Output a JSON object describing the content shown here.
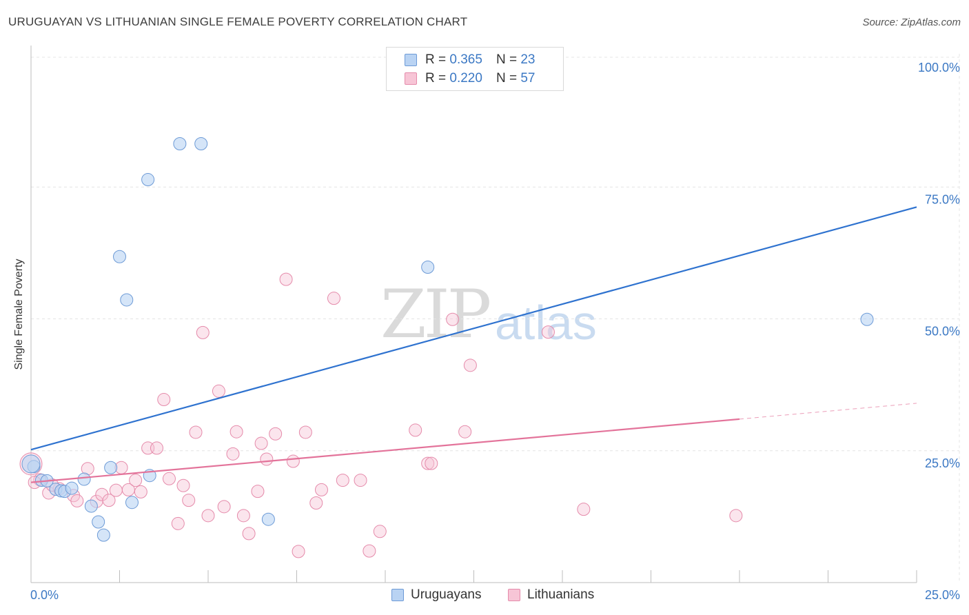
{
  "header": {
    "title": "URUGUAYAN VS LITHUANIAN SINGLE FEMALE POVERTY CORRELATION CHART",
    "source": "Source: ZipAtlas.com"
  },
  "watermark": {
    "zip": "ZIP",
    "atlas": "atlas"
  },
  "legend": {
    "rows": [
      {
        "r_label": "R =",
        "r_value": "0.365",
        "n_label": "N =",
        "n_value": "23"
      },
      {
        "r_label": "R =",
        "r_value": "0.220",
        "n_label": "N =",
        "n_value": "57"
      }
    ]
  },
  "bottom_legend": {
    "series1": "Uruguayans",
    "series2": "Lithuanians"
  },
  "colors": {
    "blue_fill": "#b9d3f3",
    "blue_stroke": "#6c9ad6",
    "blue_line": "#2e72cf",
    "pink_fill": "#f7c5d6",
    "pink_stroke": "#e58aaa",
    "pink_line": "#e3739a",
    "grid": "#e4e4e4",
    "tick_label": "#3b78c4"
  },
  "chart_data": {
    "type": "scatter",
    "title": "URUGUAYAN VS LITHUANIAN SINGLE FEMALE POVERTY CORRELATION CHART",
    "xlabel": "",
    "ylabel": "Single Female Poverty",
    "xlim": [
      0,
      25
    ],
    "ylim": [
      0,
      100
    ],
    "x_ticks_labels": [
      "0.0%",
      "25.0%"
    ],
    "y_ticks": [
      25,
      50,
      75,
      100
    ],
    "y_ticks_labels": [
      "25.0%",
      "50.0%",
      "75.0%",
      "100.0%"
    ],
    "grid": true,
    "legend_position": "top-center",
    "series": [
      {
        "name": "Uruguayans",
        "color": "blue",
        "trend": {
          "x": [
            0,
            25
          ],
          "y": [
            25.2,
            71.2
          ]
        },
        "points": [
          [
            0.08,
            22.0
          ],
          [
            0.3,
            19.4
          ],
          [
            0.45,
            19.3
          ],
          [
            0.7,
            17.7
          ],
          [
            0.85,
            17.4
          ],
          [
            0.95,
            17.3
          ],
          [
            1.15,
            17.9
          ],
          [
            1.5,
            19.6
          ],
          [
            1.7,
            14.5
          ],
          [
            1.9,
            11.5
          ],
          [
            2.05,
            9.0
          ],
          [
            2.25,
            21.8
          ],
          [
            2.5,
            61.8
          ],
          [
            2.7,
            53.6
          ],
          [
            2.85,
            15.2
          ],
          [
            3.3,
            76.4
          ],
          [
            3.35,
            20.3
          ],
          [
            4.2,
            83.2
          ],
          [
            4.8,
            83.2
          ],
          [
            6.7,
            12.0
          ],
          [
            11.2,
            59.8
          ],
          [
            23.6,
            49.9
          ],
          [
            0.0,
            22.5
          ]
        ]
      },
      {
        "name": "Lithuanians",
        "color": "pink",
        "trend": {
          "x": [
            0,
            20
          ],
          "y": [
            19.0,
            31.0
          ]
        },
        "trend_dashed": {
          "x": [
            20,
            25
          ],
          "y": [
            31.0,
            34.0
          ]
        },
        "points": [
          [
            0.0,
            22.5
          ],
          [
            0.25,
            19.5
          ],
          [
            0.5,
            17.0
          ],
          [
            0.8,
            17.8
          ],
          [
            1.2,
            16.5
          ],
          [
            1.3,
            15.5
          ],
          [
            1.6,
            21.6
          ],
          [
            1.85,
            15.4
          ],
          [
            2.0,
            16.7
          ],
          [
            2.2,
            15.6
          ],
          [
            2.4,
            17.5
          ],
          [
            2.55,
            21.8
          ],
          [
            2.75,
            17.6
          ],
          [
            2.95,
            19.4
          ],
          [
            3.1,
            17.2
          ],
          [
            3.3,
            25.5
          ],
          [
            3.55,
            25.5
          ],
          [
            3.75,
            34.7
          ],
          [
            3.9,
            19.7
          ],
          [
            4.15,
            11.2
          ],
          [
            4.3,
            18.4
          ],
          [
            4.45,
            15.6
          ],
          [
            4.65,
            28.5
          ],
          [
            4.85,
            47.4
          ],
          [
            5.0,
            12.7
          ],
          [
            5.3,
            36.3
          ],
          [
            5.45,
            14.4
          ],
          [
            5.7,
            24.4
          ],
          [
            5.8,
            28.6
          ],
          [
            6.0,
            12.7
          ],
          [
            6.15,
            9.3
          ],
          [
            6.4,
            17.3
          ],
          [
            6.5,
            26.4
          ],
          [
            6.65,
            23.4
          ],
          [
            6.9,
            28.2
          ],
          [
            7.2,
            57.5
          ],
          [
            7.4,
            23.0
          ],
          [
            7.55,
            5.9
          ],
          [
            7.75,
            28.5
          ],
          [
            8.05,
            15.1
          ],
          [
            8.2,
            17.6
          ],
          [
            8.55,
            53.9
          ],
          [
            8.8,
            19.4
          ],
          [
            9.3,
            19.4
          ],
          [
            9.55,
            6.0
          ],
          [
            9.85,
            9.7
          ],
          [
            10.85,
            28.9
          ],
          [
            11.2,
            22.6
          ],
          [
            11.3,
            22.6
          ],
          [
            11.9,
            49.9
          ],
          [
            12.25,
            28.6
          ],
          [
            12.4,
            41.2
          ],
          [
            14.6,
            47.5
          ],
          [
            15.6,
            13.9
          ],
          [
            19.9,
            12.7
          ],
          [
            0.1,
            19.0
          ],
          [
            0.6,
            18.5
          ]
        ]
      }
    ]
  }
}
